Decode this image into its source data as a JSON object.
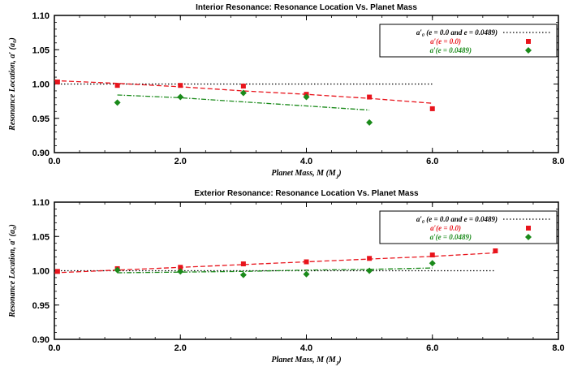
{
  "chart_data": [
    {
      "type": "line",
      "title": "Interior Resonance: Resonance Location Vs. Planet Mass",
      "xlabel": "Planet Mass, M (M",
      "xlabel_sub": "J",
      "xlabel_close": ")",
      "ylabel": "Resonance Location, a′ (a₀)",
      "xlim": [
        0,
        8
      ],
      "ylim": [
        0.9,
        1.1
      ],
      "xticks": [
        "0.0",
        "2.0",
        "4.0",
        "6.0",
        "8.0"
      ],
      "yticks": [
        "0.90",
        "0.95",
        "1.00",
        "1.05",
        "1.10"
      ],
      "colors": {
        "ref": "#000000",
        "e0": "#e8141c",
        "e0489": "#1a8a1a"
      },
      "legend": [
        "a′₀ (e = 0.0 and e = 0.0489)",
        "a′(e = 0.0)",
        "a′(e = 0.0489)"
      ],
      "series": [
        {
          "name": "a'o (e = 0.0 and e = 0.0489)",
          "style": "dotted",
          "x": [
            0,
            6
          ],
          "y": [
            1.0,
            1.0
          ]
        },
        {
          "name": "a'(e = 0.0) points",
          "style": "square",
          "x": [
            0.05,
            1,
            2,
            3,
            4,
            5,
            6
          ],
          "y": [
            1.003,
            0.998,
            0.998,
            0.997,
            0.985,
            0.981,
            0.964
          ]
        },
        {
          "name": "a'(e = 0.0) fit",
          "style": "dashed",
          "x": [
            0,
            1,
            2,
            3,
            4,
            5,
            6
          ],
          "y": [
            1.005,
            1.001,
            0.996,
            0.99,
            0.985,
            0.979,
            0.972
          ]
        },
        {
          "name": "a'(e = 0.0489) points",
          "style": "diamond",
          "x": [
            1,
            2,
            3,
            4,
            5
          ],
          "y": [
            0.973,
            0.981,
            0.987,
            0.981,
            0.944
          ]
        },
        {
          "name": "a'(e = 0.0489) fit",
          "style": "dashdot",
          "x": [
            1,
            2,
            3,
            4,
            5
          ],
          "y": [
            0.984,
            0.98,
            0.974,
            0.968,
            0.962
          ]
        }
      ]
    },
    {
      "type": "line",
      "title": "Exterior Resonance: Resonance Location Vs. Planet Mass",
      "xlabel": "Planet Mass, M (M",
      "xlabel_sub": "J",
      "xlabel_close": ")",
      "ylabel": "Resonance Location, a′ (a₀)",
      "xlim": [
        0,
        8
      ],
      "ylim": [
        0.9,
        1.1
      ],
      "xticks": [
        "0.0",
        "2.0",
        "4.0",
        "6.0",
        "8.0"
      ],
      "yticks": [
        "0.90",
        "0.95",
        "1.00",
        "1.05",
        "1.10"
      ],
      "colors": {
        "ref": "#000000",
        "e0": "#e8141c",
        "e0489": "#1a8a1a"
      },
      "legend": [
        "a′₀ (e = 0.0 and e = 0.0489)",
        "a′(e = 0.0)",
        "a′(e = 0.0489)"
      ],
      "series": [
        {
          "name": "a'o (e = 0.0 and e = 0.0489)",
          "style": "dotted",
          "x": [
            0,
            7
          ],
          "y": [
            1.0,
            1.0
          ]
        },
        {
          "name": "a'(e = 0.0) points",
          "style": "square",
          "x": [
            0.05,
            1,
            2,
            3,
            4,
            5,
            6,
            7
          ],
          "y": [
            0.999,
            1.003,
            1.005,
            1.01,
            1.013,
            1.018,
            1.023,
            1.029
          ]
        },
        {
          "name": "a'(e = 0.0) fit",
          "style": "dashed",
          "x": [
            0,
            1,
            2,
            3,
            4,
            5,
            6,
            7
          ],
          "y": [
            0.997,
            1.001,
            1.005,
            1.009,
            1.013,
            1.017,
            1.021,
            1.026
          ]
        },
        {
          "name": "a'(e = 0.0489) points",
          "style": "diamond",
          "x": [
            1,
            2,
            3,
            4,
            5,
            6
          ],
          "y": [
            1.001,
            0.999,
            0.994,
            0.995,
            1.0,
            1.011
          ]
        },
        {
          "name": "a'(e = 0.0489) fit",
          "style": "dashdot",
          "x": [
            1,
            2,
            3,
            4,
            5,
            6
          ],
          "y": [
            0.997,
            0.998,
            0.999,
            1.001,
            1.002,
            1.004
          ]
        }
      ]
    }
  ]
}
